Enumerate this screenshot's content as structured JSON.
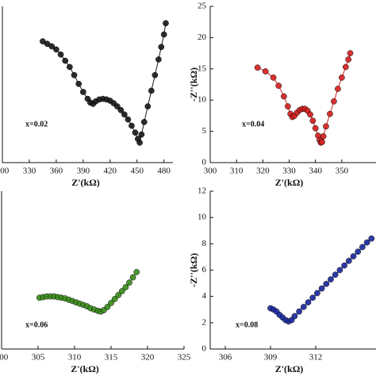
{
  "chart_data": [
    {
      "type": "scatter",
      "color": "#1a1a1a",
      "annotation": "x=0.02",
      "xlabel": "Z'(kΩ)",
      "xlim": [
        300,
        490
      ],
      "ylim": [
        0,
        25
      ],
      "xticks": [
        300,
        330,
        360,
        390,
        420,
        450,
        480
      ],
      "x": [
        345,
        350,
        355,
        360,
        365,
        370,
        375,
        380,
        385,
        390,
        395,
        398,
        401,
        404,
        408,
        412,
        416,
        420,
        424,
        428,
        432,
        436,
        440,
        444,
        448,
        451,
        453,
        455,
        458,
        462,
        466,
        470,
        474,
        477,
        480,
        482
      ],
      "values": [
        19.4,
        19.0,
        18.6,
        18.1,
        17.3,
        16.3,
        15.3,
        14.0,
        12.6,
        11.3,
        10.2,
        9.6,
        9.4,
        9.8,
        10.1,
        10.2,
        10.1,
        9.9,
        9.5,
        9.0,
        8.4,
        7.7,
        6.9,
        5.9,
        4.8,
        3.8,
        3.2,
        4.5,
        6.5,
        9.0,
        11.5,
        14.0,
        16.5,
        18.5,
        20.5,
        22.3
      ]
    },
    {
      "type": "scatter",
      "color": "#d42020",
      "annotation": "x=0.04",
      "xlabel": "Z'(kΩ)",
      "ylabel": "-Z''(kΩ)",
      "xlim": [
        300,
        363
      ],
      "ylim": [
        0,
        25
      ],
      "xticks": [
        300,
        310,
        320,
        330,
        340,
        350
      ],
      "yticks": [
        0,
        5,
        10,
        15,
        20,
        25
      ],
      "x": [
        318,
        321,
        324,
        326,
        328,
        329.5,
        330.5,
        331.2,
        332,
        333,
        334,
        335,
        336,
        337,
        338,
        339,
        340,
        341,
        341.6,
        342,
        342.5,
        343,
        344,
        345.5,
        347,
        348.5,
        350,
        351.5,
        352.5,
        353.2
      ],
      "values": [
        15.2,
        14.6,
        13.6,
        12.3,
        10.6,
        9.0,
        7.8,
        7.3,
        7.5,
        8.0,
        8.4,
        8.6,
        8.6,
        8.3,
        7.7,
        6.7,
        5.5,
        4.3,
        3.6,
        3.2,
        3.3,
        4.2,
        5.8,
        7.8,
        9.8,
        11.8,
        13.6,
        15.3,
        16.5,
        17.5
      ]
    },
    {
      "type": "scatter",
      "color": "#3b8c1c",
      "annotation": "x=0.06",
      "xlabel": "Z'(kΩ)",
      "xlim": [
        300,
        325
      ],
      "ylim": [
        0,
        12
      ],
      "xticks": [
        300,
        305,
        310,
        315,
        320,
        325
      ],
      "x": [
        305.2,
        305.7,
        306.2,
        306.7,
        307.2,
        307.7,
        308.2,
        308.7,
        309.2,
        309.7,
        310.2,
        310.7,
        311.2,
        311.7,
        312.2,
        312.7,
        313.2,
        313.6,
        314.0,
        314.5,
        315.0,
        315.5,
        316.0,
        316.5,
        317.0,
        317.5,
        318.0,
        318.5
      ],
      "values": [
        3.9,
        3.95,
        4.0,
        4.0,
        4.0,
        3.95,
        3.9,
        3.85,
        3.75,
        3.65,
        3.55,
        3.45,
        3.35,
        3.25,
        3.1,
        3.0,
        2.9,
        2.85,
        2.95,
        3.2,
        3.5,
        3.8,
        4.1,
        4.4,
        4.7,
        5.05,
        5.45,
        5.85
      ]
    },
    {
      "type": "scatter",
      "color": "#1c2aa0",
      "annotation": "x=0.08",
      "xlabel": "Z'(kΩ)",
      "ylabel": "-Z''(kΩ)",
      "xlim": [
        305,
        316
      ],
      "ylim": [
        0,
        12
      ],
      "xticks": [
        306,
        309,
        312
      ],
      "yticks": [
        0,
        2,
        4,
        6,
        8,
        10,
        12
      ],
      "x": [
        309.0,
        309.2,
        309.4,
        309.6,
        309.8,
        310.0,
        310.2,
        310.4,
        310.6,
        310.9,
        311.2,
        311.5,
        311.8,
        312.1,
        312.4,
        312.7,
        313.0,
        313.3,
        313.6,
        313.9,
        314.2,
        314.5,
        314.8,
        315.1,
        315.4,
        315.7
      ],
      "values": [
        3.1,
        3.0,
        2.85,
        2.6,
        2.4,
        2.2,
        2.1,
        2.2,
        2.5,
        2.85,
        3.2,
        3.55,
        3.9,
        4.25,
        4.6,
        4.95,
        5.3,
        5.65,
        6.0,
        6.35,
        6.7,
        7.05,
        7.4,
        7.75,
        8.1,
        8.4
      ]
    }
  ]
}
